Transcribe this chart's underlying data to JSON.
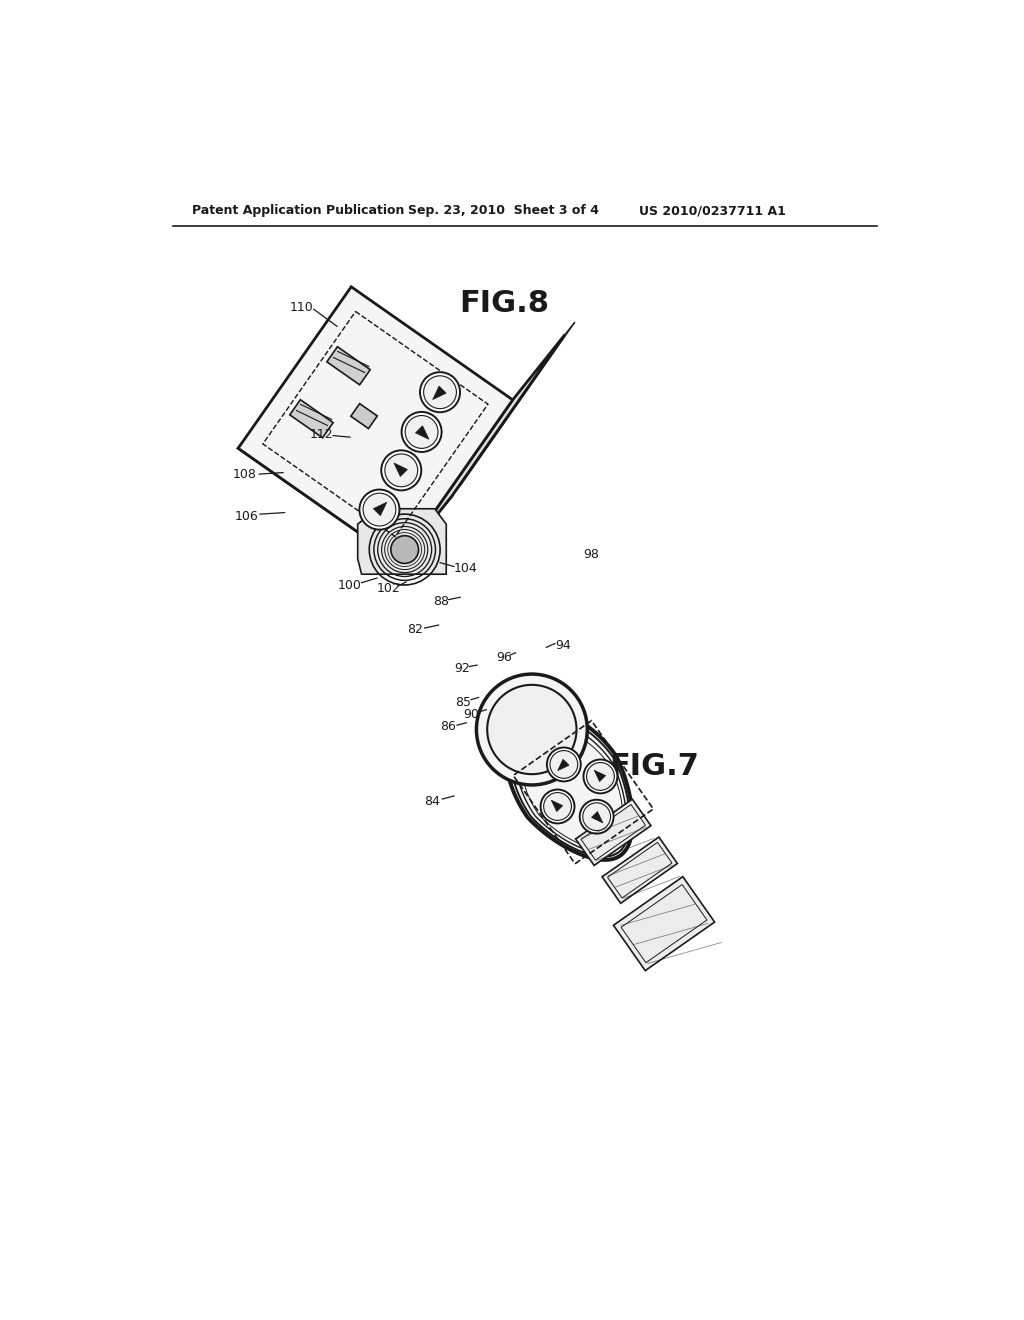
{
  "bg_color": "#ffffff",
  "line_color": "#1a1a1a",
  "header_left": "Patent Application Publication",
  "header_mid": "Sep. 23, 2010  Sheet 3 of 4",
  "header_right": "US 2010/0237711 A1",
  "fig7_label": "FIG.7",
  "fig8_label": "FIG.8"
}
